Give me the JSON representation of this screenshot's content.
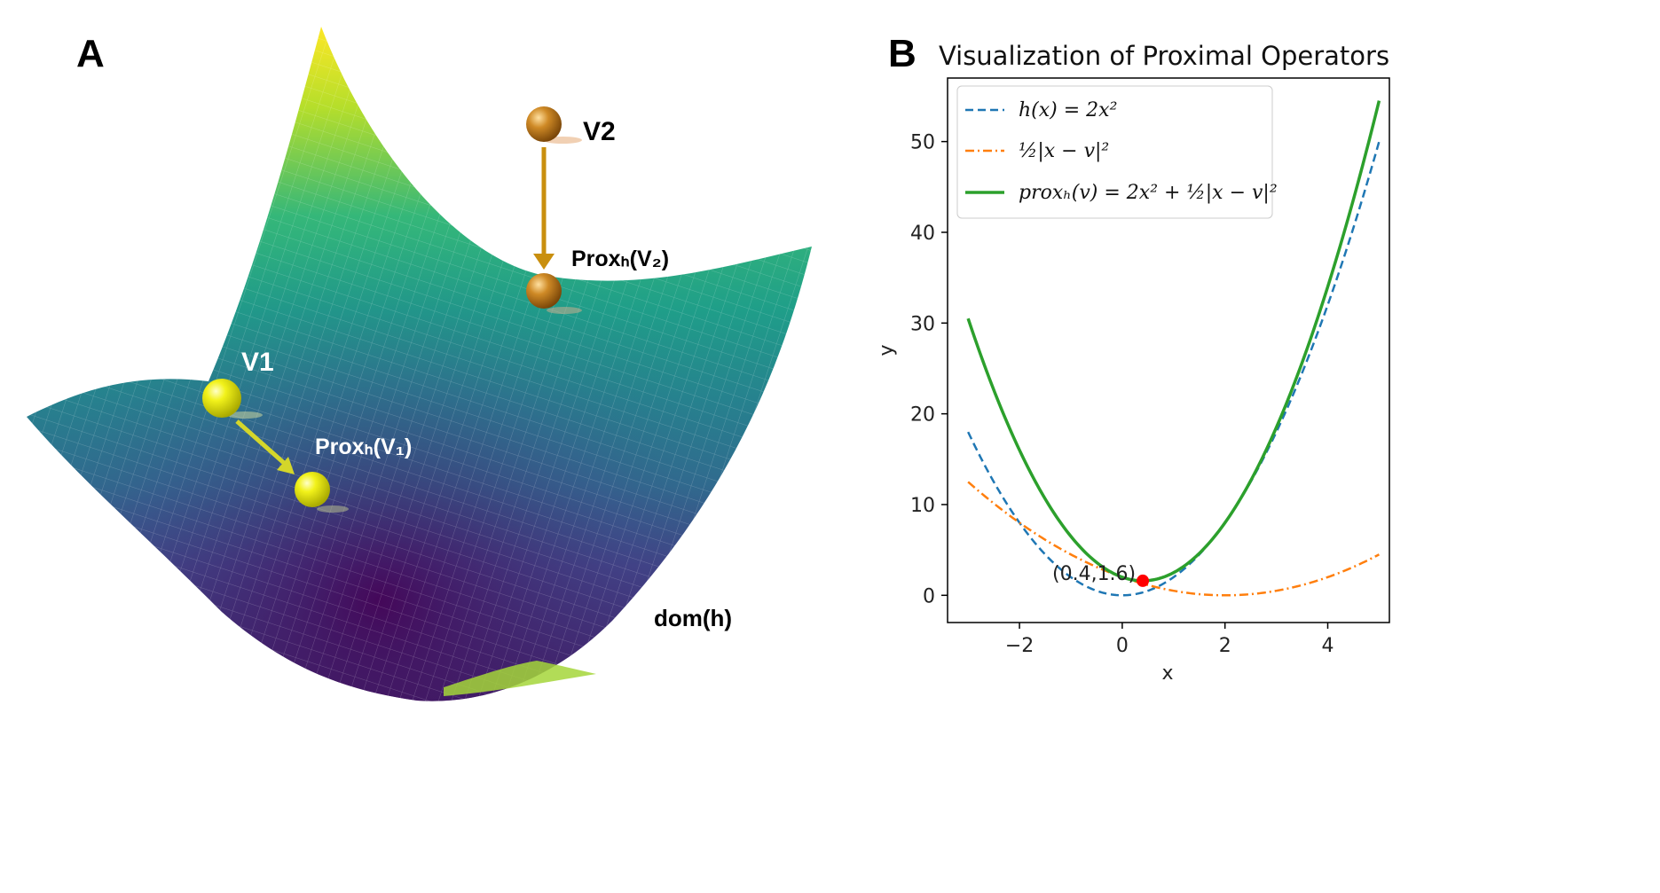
{
  "panel_a": {
    "letter": "A",
    "v2_label": "V2",
    "prox_v2_label": "Proxₕ(V₂)",
    "v1_label": "V1",
    "prox_v1_label": "Proxₕ(V₁)",
    "domain_label": "dom(h)",
    "ball1_color": "#e6ea12",
    "ball2_color": "#c27a14",
    "arrow1_color": "#d4d62a",
    "arrow2_color": "#c98f0e"
  },
  "panel_b": {
    "letter": "B",
    "annotation": "(0.4,1.6)",
    "point_color": "#ff0000"
  },
  "chart_data": {
    "type": "line",
    "title": "Visualization of Proximal Operators",
    "xlabel": "x",
    "ylabel": "y",
    "xlim": [
      -3.4,
      5.2
    ],
    "ylim": [
      -3,
      57
    ],
    "xticks": [
      -2,
      0,
      2,
      4
    ],
    "xtick_labels": [
      "−2",
      "0",
      "2",
      "4"
    ],
    "yticks": [
      0,
      10,
      20,
      30,
      40,
      50
    ],
    "ytick_labels": [
      "0",
      "10",
      "20",
      "30",
      "40",
      "50"
    ],
    "legend_position": "top-left",
    "grid": false,
    "series": [
      {
        "name": "h(x) = 2x²",
        "formula": "2*x^2",
        "x_range": [
          -3,
          5
        ],
        "style": "dashed",
        "color": "#1f77b4"
      },
      {
        "name": "½|x − v|²",
        "formula": "0.5*(x-2)^2",
        "x_range": [
          -3,
          5
        ],
        "style": "dashdot",
        "color": "#ff7f0e"
      },
      {
        "name": "proxₕ(v) = 2x² + ½|x − v|²",
        "formula": "2*x^2 + 0.5*(x-2)^2",
        "x_range": [
          -3,
          5
        ],
        "style": "solid",
        "color": "#2ca02c"
      }
    ],
    "point": {
      "x": 0.4,
      "y": 1.6,
      "label": "(0.4,1.6)"
    }
  }
}
